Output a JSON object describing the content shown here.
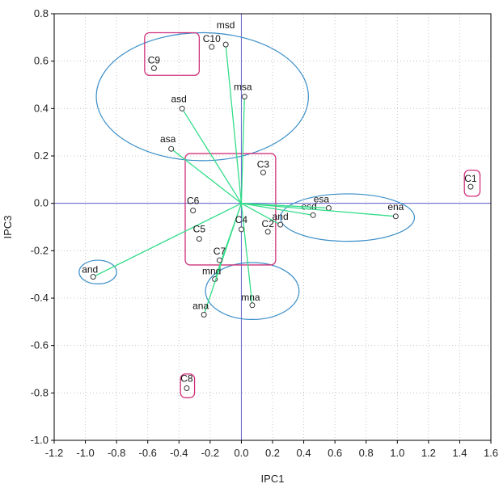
{
  "chart_data": {
    "type": "scatter",
    "title": "",
    "xlabel": "IPC1",
    "ylabel": "IPC3",
    "xlim": [
      -1.2,
      1.6
    ],
    "ylim": [
      -1.0,
      0.8
    ],
    "xticks": [
      "-1.2",
      "-1.0",
      "-0.8",
      "-0.6",
      "-0.4",
      "-0.2",
      "0.0",
      "0.2",
      "0.4",
      "0.6",
      "0.8",
      "1.0",
      "1.2",
      "1.4",
      "1.6"
    ],
    "yticks": [
      "-1.0",
      "-0.8",
      "-0.6",
      "-0.4",
      "-0.2",
      "0.0",
      "0.2",
      "0.4",
      "0.6",
      "0.8"
    ],
    "xtick_values": [
      -1.2,
      -1.0,
      -0.8,
      -0.6,
      -0.4,
      -0.2,
      0.0,
      0.2,
      0.4,
      0.6,
      0.8,
      1.0,
      1.2,
      1.4,
      1.6
    ],
    "ytick_values": [
      -1.0,
      -0.8,
      -0.6,
      -0.4,
      -0.2,
      0.0,
      0.2,
      0.4,
      0.6,
      0.8
    ],
    "grid": true,
    "colors": {
      "vectors": "#33dd88",
      "ellipses": "#3a8ec8",
      "boxes": "#d0307a",
      "axes_lines": "#6060cc",
      "points": "#333333"
    },
    "points": [
      {
        "label": "C1",
        "x": 1.47,
        "y": 0.07
      },
      {
        "label": "C2",
        "x": 0.17,
        "y": -0.12
      },
      {
        "label": "C3",
        "x": 0.14,
        "y": 0.13
      },
      {
        "label": "C4",
        "x": 0.0,
        "y": -0.11
      },
      {
        "label": "C5",
        "x": -0.27,
        "y": -0.15
      },
      {
        "label": "C6",
        "x": -0.31,
        "y": -0.03
      },
      {
        "label": "C7",
        "x": -0.14,
        "y": -0.24
      },
      {
        "label": "C8",
        "x": -0.35,
        "y": -0.78
      },
      {
        "label": "C9",
        "x": -0.56,
        "y": 0.57
      },
      {
        "label": "C10",
        "x": -0.19,
        "y": 0.66
      }
    ],
    "vectors": [
      {
        "label": "and",
        "x": -0.95,
        "y": -0.31
      },
      {
        "label": "mnd",
        "x": -0.17,
        "y": -0.32
      },
      {
        "label": "ana",
        "x": -0.24,
        "y": -0.47
      },
      {
        "label": "mna",
        "x": 0.07,
        "y": -0.43
      },
      {
        "label": "asa",
        "x": -0.45,
        "y": 0.23
      },
      {
        "label": "asd",
        "x": -0.38,
        "y": 0.4
      },
      {
        "label": "msa",
        "x": 0.02,
        "y": 0.45
      },
      {
        "label": "msd",
        "x": -0.1,
        "y": 0.67
      },
      {
        "label": "and",
        "x": 0.25,
        "y": -0.09
      },
      {
        "label": "esd",
        "x": 0.46,
        "y": -0.05
      },
      {
        "label": "esa",
        "x": 0.56,
        "y": -0.02
      },
      {
        "label": "ena",
        "x": 0.99,
        "y": -0.055
      }
    ],
    "ellipses": [
      {
        "cx": -0.25,
        "cy": 0.45,
        "rx": 0.68,
        "ry": 0.27
      },
      {
        "cx": -0.92,
        "cy": -0.29,
        "rx": 0.12,
        "ry": 0.05
      },
      {
        "cx": 0.07,
        "cy": -0.37,
        "rx": 0.3,
        "ry": 0.12
      },
      {
        "cx": 0.68,
        "cy": -0.06,
        "rx": 0.43,
        "ry": 0.1
      }
    ],
    "boxes": [
      {
        "x0": -0.62,
        "x1": -0.27,
        "y0": 0.54,
        "y1": 0.72
      },
      {
        "x0": -0.36,
        "x1": 0.22,
        "y0": -0.26,
        "y1": 0.21
      },
      {
        "x0": 1.43,
        "x1": 1.53,
        "y0": 0.03,
        "y1": 0.14
      },
      {
        "x0": -0.39,
        "x1": -0.3,
        "y0": -0.82,
        "y1": -0.72
      }
    ]
  }
}
